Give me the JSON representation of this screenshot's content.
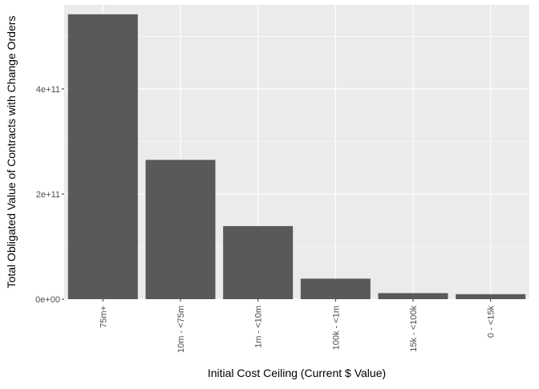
{
  "chart_data": {
    "type": "bar",
    "title": "",
    "xlabel": "Initial Cost Ceiling (Current $ Value)",
    "ylabel": "Total Obligated Value of Contracts with Change Orders",
    "categories": [
      "75m+",
      "10m - <75m",
      "1m - <10m",
      "100k - <1m",
      "15k - <100k",
      "0 - <15k"
    ],
    "values": [
      542000000000,
      265000000000,
      139000000000,
      39000000000,
      11500000000,
      9500000000
    ],
    "ylim": [
      0,
      560000000000
    ],
    "yticks": [
      0,
      200000000000,
      400000000000
    ],
    "ytick_labels": [
      "0e+00",
      "2e+11",
      "4e+11"
    ],
    "grid": true,
    "legend": "none",
    "colors": {
      "bar": "#595959",
      "panel": "#ebebeb",
      "grid": "#ffffff",
      "tick_text": "#4d4d4d"
    }
  }
}
